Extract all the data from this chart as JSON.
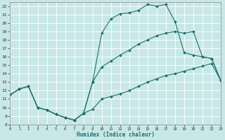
{
  "xlabel": "Humidex (Indice chaleur)",
  "background_color": "#c8e8e8",
  "grid_color": "#b0d8d8",
  "line_color": "#1e6e6e",
  "xlim": [
    0,
    23
  ],
  "ylim": [
    8,
    22.5
  ],
  "xticks": [
    0,
    1,
    2,
    3,
    4,
    5,
    6,
    7,
    8,
    9,
    10,
    11,
    12,
    13,
    14,
    15,
    16,
    17,
    18,
    19,
    20,
    21,
    22,
    23
  ],
  "yticks": [
    8,
    9,
    10,
    11,
    12,
    13,
    14,
    15,
    16,
    17,
    18,
    19,
    20,
    21,
    22
  ],
  "curve_top_x": [
    0,
    1,
    2,
    3,
    4,
    5,
    6,
    7,
    8,
    9,
    10,
    11,
    12,
    13,
    14,
    15,
    16,
    17,
    18,
    19,
    20,
    21,
    22,
    23
  ],
  "curve_top_y": [
    11.5,
    12.2,
    12.5,
    10.0,
    9.7,
    9.2,
    8.8,
    8.5,
    9.3,
    13.0,
    18.8,
    20.5,
    21.1,
    21.2,
    21.5,
    22.2,
    22.0,
    22.2,
    20.2,
    16.5,
    16.2,
    16.0,
    15.8,
    13.2
  ],
  "curve_mid_x": [
    0,
    1,
    2,
    3,
    4,
    5,
    6,
    7,
    8,
    9,
    10,
    11,
    12,
    13,
    14,
    15,
    16,
    17,
    18,
    19,
    20,
    21,
    22,
    23
  ],
  "curve_mid_y": [
    11.5,
    12.2,
    12.5,
    10.0,
    9.7,
    9.2,
    8.8,
    8.5,
    9.3,
    13.0,
    14.8,
    15.5,
    16.2,
    16.8,
    17.5,
    18.0,
    18.5,
    18.8,
    19.0,
    18.8,
    19.0,
    16.0,
    15.8,
    13.2
  ],
  "curve_bot_x": [
    0,
    1,
    2,
    3,
    4,
    5,
    6,
    7,
    8,
    9,
    10,
    11,
    12,
    13,
    14,
    15,
    16,
    17,
    18,
    19,
    20,
    21,
    22,
    23
  ],
  "curve_bot_y": [
    11.5,
    12.2,
    12.5,
    10.0,
    9.7,
    9.2,
    8.8,
    8.5,
    9.3,
    9.8,
    11.0,
    11.3,
    11.6,
    12.0,
    12.5,
    13.0,
    13.4,
    13.8,
    14.0,
    14.3,
    14.6,
    14.9,
    15.2,
    13.2
  ]
}
